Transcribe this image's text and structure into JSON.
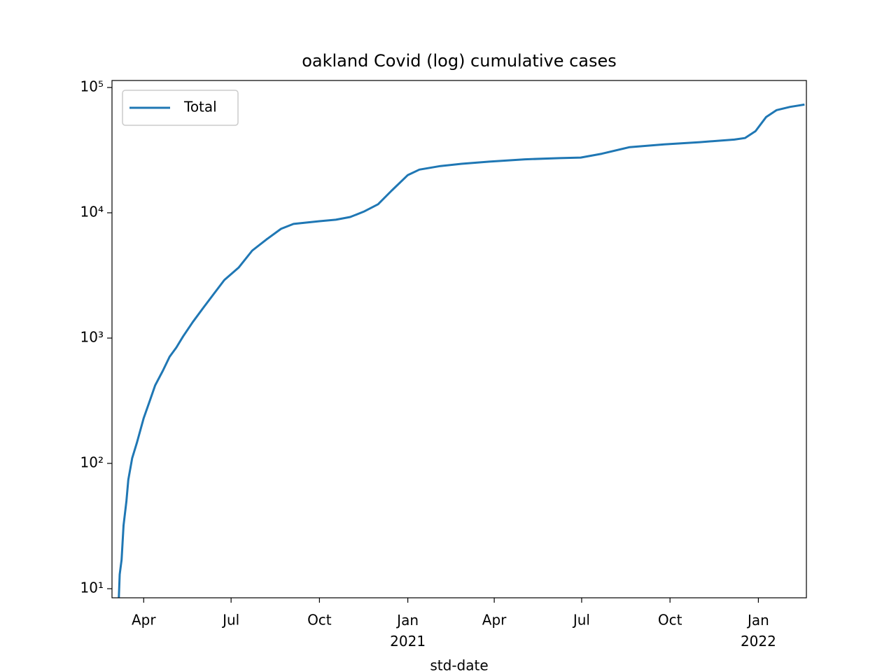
{
  "chart_data": {
    "type": "line",
    "title": "oakland Covid (log) cumulative cases",
    "xlabel": "std-date",
    "log_y": true,
    "legend": "upper left",
    "xlim": [
      "2020-02-28",
      "2022-02-20"
    ],
    "ylim": [
      8.46,
      113700
    ],
    "xticks": [
      {
        "value": "2020-04-01",
        "label": "Apr"
      },
      {
        "value": "2020-07-01",
        "label": "Jul"
      },
      {
        "value": "2020-10-01",
        "label": "Oct"
      },
      {
        "value": "2021-01-01",
        "label": "Jan\n2021"
      },
      {
        "value": "2021-04-01",
        "label": "Apr"
      },
      {
        "value": "2021-07-01",
        "label": "Jul"
      },
      {
        "value": "2021-10-01",
        "label": "Oct"
      },
      {
        "value": "2022-01-01",
        "label": "Jan\n2022"
      }
    ],
    "yticks": [
      {
        "value": 10,
        "label": "10¹"
      },
      {
        "value": 100,
        "label": "10²"
      },
      {
        "value": 1000,
        "label": "10³"
      },
      {
        "value": 10000,
        "label": "10⁴"
      },
      {
        "value": 100000,
        "label": "10⁵"
      }
    ],
    "x": [
      "2020-03-06",
      "2020-03-07",
      "2020-03-09",
      "2020-03-11",
      "2020-03-14",
      "2020-03-16",
      "2020-03-20",
      "2020-03-25",
      "2020-04-01",
      "2020-04-07",
      "2020-04-13",
      "2020-04-21",
      "2020-04-28",
      "2020-05-05",
      "2020-05-12",
      "2020-05-22",
      "2020-06-02",
      "2020-06-13",
      "2020-06-24",
      "2020-07-09",
      "2020-07-23",
      "2020-08-07",
      "2020-08-22",
      "2020-09-04",
      "2020-10-01",
      "2020-10-18",
      "2020-11-02",
      "2020-11-16",
      "2020-12-01",
      "2020-12-15",
      "2021-01-01",
      "2021-01-13",
      "2021-02-04",
      "2021-02-26",
      "2021-03-27",
      "2021-05-03",
      "2021-06-08",
      "2021-06-30",
      "2021-07-22",
      "2021-08-20",
      "2021-09-25",
      "2021-11-01",
      "2021-12-07",
      "2021-12-18",
      "2021-12-29",
      "2022-01-09",
      "2022-01-20",
      "2022-02-03",
      "2022-02-18"
    ],
    "series": [
      {
        "name": "Total",
        "color": "#1f77b4",
        "values": [
          8,
          13,
          17,
          32,
          50,
          74,
          110,
          147,
          230,
          310,
          420,
          550,
          710,
          840,
          1030,
          1340,
          1740,
          2250,
          2910,
          3660,
          4990,
          6140,
          7450,
          8150,
          8570,
          8800,
          9260,
          10200,
          11700,
          15000,
          20000,
          22100,
          23600,
          24600,
          25600,
          26700,
          27300,
          27600,
          29600,
          33400,
          35200,
          36600,
          38400,
          39500,
          44800,
          58000,
          66000,
          70000,
          73000
        ]
      }
    ]
  }
}
